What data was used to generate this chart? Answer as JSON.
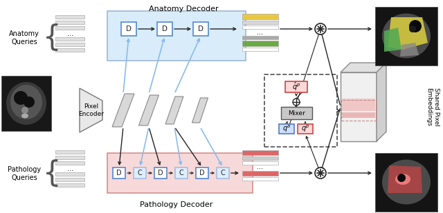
{
  "title": "Anatomy Decoder",
  "subtitle_bottom": "Pathology Decoder",
  "label_anatomy": "Anatomy\nQueries",
  "label_pathology": "Pathology\nQueries",
  "label_pixel": "Pixel\nEncoder",
  "label_shared": "Shared Pixel\nEmbeddings",
  "bg_color": "#ffffff",
  "blue_box_color": "#d0e8f8",
  "pink_box_color": "#f5d0d0",
  "arrow_color": "#222222",
  "blue_arrow_color": "#88bbee",
  "strip_ec": "#aaaaaa",
  "strip_fc": "#e8e8e8",
  "dashed_box_color": "#444444",
  "D_box_ec_blue": "#5588cc",
  "D_box_ec_pink": "#cc5555",
  "C_box_ec": "#aabbdd",
  "C_box_fc": "#ddeeff",
  "mixer_fc": "#c8c8c8"
}
